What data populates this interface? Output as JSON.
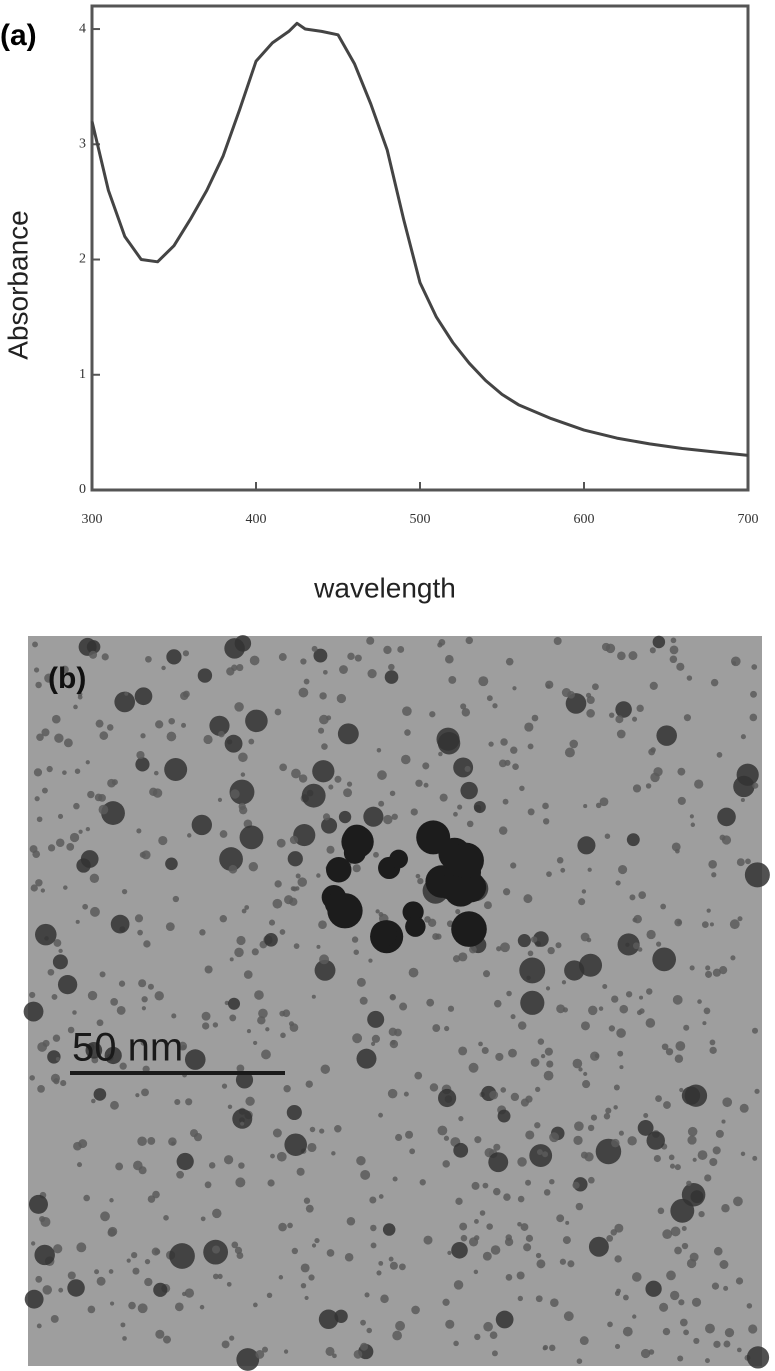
{
  "panel_a": {
    "label": "(a)"
  },
  "chart_data": {
    "type": "line",
    "xlabel": "wavelength",
    "ylabel": "Absorbance",
    "x": [
      300,
      310,
      320,
      330,
      340,
      350,
      360,
      370,
      380,
      390,
      400,
      410,
      420,
      425,
      430,
      440,
      450,
      460,
      470,
      480,
      490,
      500,
      510,
      520,
      530,
      540,
      550,
      560,
      580,
      600,
      620,
      640,
      660,
      680,
      700
    ],
    "series": [
      {
        "name": "Absorbance",
        "color": "#444444",
        "values": [
          3.2,
          2.6,
          2.2,
          2.0,
          1.98,
          2.12,
          2.35,
          2.6,
          2.9,
          3.3,
          3.72,
          3.88,
          3.98,
          4.05,
          4.0,
          3.98,
          3.95,
          3.7,
          3.35,
          2.95,
          2.35,
          1.8,
          1.5,
          1.28,
          1.1,
          0.95,
          0.83,
          0.74,
          0.62,
          0.52,
          0.45,
          0.4,
          0.36,
          0.33,
          0.3
        ]
      }
    ],
    "xlim": [
      300,
      700
    ],
    "xticks": [
      300,
      400,
      500,
      600,
      700
    ],
    "ylim": [
      0,
      4.2
    ],
    "yticks": [
      0,
      1,
      2,
      3,
      4
    ]
  },
  "panel_b": {
    "label": "(b)",
    "scale_bar": "50 nm"
  }
}
